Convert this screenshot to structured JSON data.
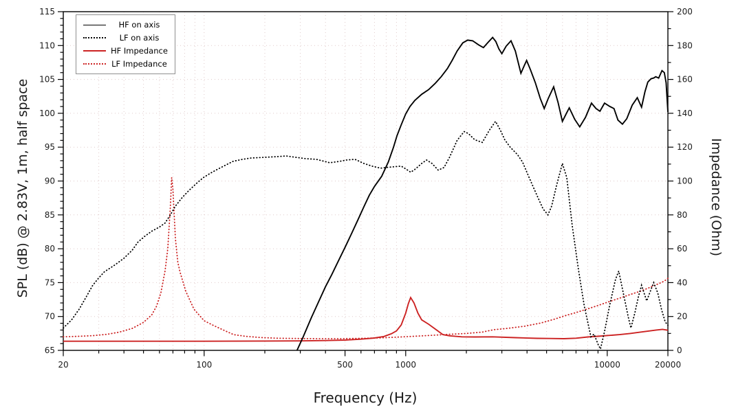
{
  "chart_data": {
    "type": "line",
    "title": "",
    "xlabel": "Frequency (Hz)",
    "ylabel_left": "SPL (dB) @ 2.83V, 1m, half space",
    "ylabel_right": "Impedance (Ohm)",
    "x_scale": "log",
    "xlim": [
      20,
      20000
    ],
    "ylim_left": [
      65,
      115
    ],
    "ylim_right": [
      0,
      200
    ],
    "x_major_ticks": [
      {
        "value": 20,
        "label": "20"
      },
      {
        "value": 100,
        "label": "100"
      },
      {
        "value": 500,
        "label": "500"
      },
      {
        "value": 1000,
        "label": "1000"
      },
      {
        "value": 10000,
        "label": "10000"
      },
      {
        "value": 20000,
        "label": "20000"
      }
    ],
    "x_minor_ticks": [
      30,
      40,
      50,
      60,
      70,
      80,
      90,
      200,
      300,
      400,
      600,
      700,
      800,
      900,
      2000,
      3000,
      4000,
      5000,
      6000,
      7000,
      8000,
      9000
    ],
    "y_left_major_step": 5,
    "y_left_minor_step": 1,
    "y_right_major_step": 20,
    "y_right_minor_step": 10,
    "grid": {
      "show": true,
      "style": "dotted",
      "color": "#dfc9c9"
    },
    "legend": {
      "position": "top-left",
      "border_color": "#8f8f8f"
    },
    "colors": {
      "spl": "#000000",
      "impedance": "#cc2222"
    },
    "series": [
      {
        "name": "HF on axis",
        "axis": "left",
        "unit": "dB",
        "color": "#000000",
        "style": "solid",
        "points": [
          [
            289,
            65
          ],
          [
            310,
            67
          ],
          [
            340,
            69.8
          ],
          [
            370,
            72.2
          ],
          [
            400,
            74.4
          ],
          [
            430,
            76.2
          ],
          [
            465,
            78.3
          ],
          [
            500,
            80.2
          ],
          [
            540,
            82.3
          ],
          [
            580,
            84.3
          ],
          [
            620,
            86.2
          ],
          [
            660,
            87.9
          ],
          [
            700,
            89.2
          ],
          [
            760,
            90.7
          ],
          [
            820,
            92.8
          ],
          [
            870,
            95.0
          ],
          [
            906,
            96.7
          ],
          [
            950,
            98.3
          ],
          [
            1000,
            99.9
          ],
          [
            1050,
            101.0
          ],
          [
            1110,
            101.9
          ],
          [
            1200,
            102.8
          ],
          [
            1300,
            103.5
          ],
          [
            1400,
            104.4
          ],
          [
            1500,
            105.4
          ],
          [
            1610,
            106.6
          ],
          [
            1700,
            107.8
          ],
          [
            1800,
            109.2
          ],
          [
            1920,
            110.4
          ],
          [
            2030,
            110.8
          ],
          [
            2150,
            110.7
          ],
          [
            2300,
            110.1
          ],
          [
            2430,
            109.7
          ],
          [
            2550,
            110.4
          ],
          [
            2700,
            111.2
          ],
          [
            2800,
            110.6
          ],
          [
            2900,
            109.5
          ],
          [
            3000,
            108.8
          ],
          [
            3150,
            109.9
          ],
          [
            3330,
            110.7
          ],
          [
            3500,
            109.2
          ],
          [
            3650,
            107.0
          ],
          [
            3730,
            105.9
          ],
          [
            3870,
            107.0
          ],
          [
            3980,
            107.8
          ],
          [
            4150,
            106.5
          ],
          [
            4400,
            104.5
          ],
          [
            4650,
            102.2
          ],
          [
            4870,
            100.7
          ],
          [
            5100,
            102.2
          ],
          [
            5420,
            103.9
          ],
          [
            5700,
            101.6
          ],
          [
            5990,
            98.8
          ],
          [
            6250,
            99.9
          ],
          [
            6480,
            100.8
          ],
          [
            6900,
            99.1
          ],
          [
            7300,
            98.0
          ],
          [
            7800,
            99.4
          ],
          [
            8350,
            101.5
          ],
          [
            8800,
            100.7
          ],
          [
            9200,
            100.3
          ],
          [
            9700,
            101.5
          ],
          [
            10300,
            101.0
          ],
          [
            10800,
            100.7
          ],
          [
            11300,
            99.0
          ],
          [
            11900,
            98.4
          ],
          [
            12500,
            99.2
          ],
          [
            13300,
            101.2
          ],
          [
            14100,
            102.3
          ],
          [
            14800,
            100.9
          ],
          [
            15400,
            103.2
          ],
          [
            15900,
            104.6
          ],
          [
            16500,
            105.1
          ],
          [
            17000,
            105.2
          ],
          [
            17400,
            105.4
          ],
          [
            18000,
            105.2
          ],
          [
            18700,
            106.3
          ],
          [
            19200,
            106.0
          ],
          [
            19600,
            104.5
          ],
          [
            20000,
            100.2
          ]
        ]
      },
      {
        "name": "LF on axis",
        "axis": "left",
        "unit": "dB",
        "color": "#000000",
        "style": "dotted",
        "points": [
          [
            20,
            68.3
          ],
          [
            22,
            69.5
          ],
          [
            24,
            71.1
          ],
          [
            26,
            72.9
          ],
          [
            28,
            74.6
          ],
          [
            30,
            75.7
          ],
          [
            32,
            76.6
          ],
          [
            36,
            77.6
          ],
          [
            40,
            78.6
          ],
          [
            44,
            79.8
          ],
          [
            47,
            81.0
          ],
          [
            51,
            81.9
          ],
          [
            55,
            82.6
          ],
          [
            60,
            83.2
          ],
          [
            64,
            83.8
          ],
          [
            68,
            85.0
          ],
          [
            72,
            86.3
          ],
          [
            78,
            87.6
          ],
          [
            84,
            88.6
          ],
          [
            92,
            89.7
          ],
          [
            99,
            90.5
          ],
          [
            108,
            91.2
          ],
          [
            116,
            91.7
          ],
          [
            127,
            92.3
          ],
          [
            139,
            92.9
          ],
          [
            155,
            93.2
          ],
          [
            171,
            93.4
          ],
          [
            200,
            93.5
          ],
          [
            230,
            93.6
          ],
          [
            255,
            93.7
          ],
          [
            285,
            93.5
          ],
          [
            320,
            93.3
          ],
          [
            360,
            93.2
          ],
          [
            420,
            92.7
          ],
          [
            470,
            92.9
          ],
          [
            510,
            93.1
          ],
          [
            560,
            93.2
          ],
          [
            620,
            92.6
          ],
          [
            680,
            92.2
          ],
          [
            750,
            91.9
          ],
          [
            800,
            92.0
          ],
          [
            870,
            92.1
          ],
          [
            950,
            92.2
          ],
          [
            1000,
            91.8
          ],
          [
            1060,
            91.3
          ],
          [
            1120,
            91.8
          ],
          [
            1200,
            92.6
          ],
          [
            1270,
            93.1
          ],
          [
            1350,
            92.6
          ],
          [
            1450,
            91.6
          ],
          [
            1550,
            92.0
          ],
          [
            1650,
            93.5
          ],
          [
            1800,
            96.0
          ],
          [
            1950,
            97.3
          ],
          [
            2050,
            97.0
          ],
          [
            2200,
            96.1
          ],
          [
            2400,
            95.7
          ],
          [
            2600,
            97.5
          ],
          [
            2790,
            98.8
          ],
          [
            2950,
            97.5
          ],
          [
            3100,
            96.1
          ],
          [
            3300,
            95.0
          ],
          [
            3585,
            93.9
          ],
          [
            3800,
            92.8
          ],
          [
            4100,
            90.5
          ],
          [
            4460,
            88.0
          ],
          [
            4800,
            85.9
          ],
          [
            5080,
            85.0
          ],
          [
            5300,
            86.3
          ],
          [
            5600,
            89.3
          ],
          [
            5990,
            92.6
          ],
          [
            6300,
            90.5
          ],
          [
            6700,
            83.5
          ],
          [
            7200,
            76.9
          ],
          [
            7700,
            71.5
          ],
          [
            8300,
            67.0
          ],
          [
            8600,
            67.4
          ],
          [
            9000,
            65.9
          ],
          [
            9260,
            65.2
          ],
          [
            9700,
            67.8
          ],
          [
            10300,
            71.8
          ],
          [
            11000,
            75.5
          ],
          [
            11400,
            76.7
          ],
          [
            12100,
            73.0
          ],
          [
            12700,
            70.0
          ],
          [
            13100,
            68.3
          ],
          [
            13700,
            70.5
          ],
          [
            14300,
            73.0
          ],
          [
            14800,
            74.6
          ],
          [
            15300,
            73.3
          ],
          [
            15700,
            72.3
          ],
          [
            16300,
            73.6
          ],
          [
            17000,
            75.0
          ],
          [
            17800,
            73.5
          ],
          [
            18600,
            71.0
          ],
          [
            19400,
            69.2
          ],
          [
            20000,
            68.7
          ]
        ]
      },
      {
        "name": "HF Impedance",
        "axis": "right",
        "unit": "Ohm",
        "color": "#cc2222",
        "style": "solid",
        "points": [
          [
            20,
            5.4
          ],
          [
            50,
            5.4
          ],
          [
            100,
            5.4
          ],
          [
            200,
            5.5
          ],
          [
            300,
            5.6
          ],
          [
            400,
            5.8
          ],
          [
            500,
            6.1
          ],
          [
            600,
            6.6
          ],
          [
            700,
            7.3
          ],
          [
            780,
            8.2
          ],
          [
            850,
            9.8
          ],
          [
            900,
            11.5
          ],
          [
            950,
            15
          ],
          [
            1000,
            22
          ],
          [
            1030,
            27.5
          ],
          [
            1058,
            31.2
          ],
          [
            1100,
            28
          ],
          [
            1150,
            22
          ],
          [
            1200,
            18
          ],
          [
            1300,
            15.4
          ],
          [
            1450,
            11.3
          ],
          [
            1530,
            9.3
          ],
          [
            1650,
            8.6
          ],
          [
            1900,
            8.0
          ],
          [
            2200,
            7.9
          ],
          [
            2700,
            8.0
          ],
          [
            3500,
            7.5
          ],
          [
            4500,
            7.1
          ],
          [
            5200,
            7.0
          ],
          [
            6100,
            6.9
          ],
          [
            7000,
            7.2
          ],
          [
            8000,
            7.9
          ],
          [
            9000,
            8.3
          ],
          [
            10400,
            8.9
          ],
          [
            11500,
            9.3
          ],
          [
            13000,
            10.0
          ],
          [
            14500,
            10.7
          ],
          [
            16000,
            11.4
          ],
          [
            17500,
            12.0
          ],
          [
            18800,
            12.4
          ],
          [
            19500,
            12.1
          ],
          [
            20000,
            11.9
          ]
        ]
      },
      {
        "name": "LF Impedance",
        "axis": "right",
        "unit": "Ohm",
        "color": "#cc2222",
        "style": "dotted",
        "points": [
          [
            20,
            8.0
          ],
          [
            24,
            8.3
          ],
          [
            28,
            8.7
          ],
          [
            33,
            9.5
          ],
          [
            38,
            10.8
          ],
          [
            44,
            13.0
          ],
          [
            50,
            16.5
          ],
          [
            55,
            21
          ],
          [
            58,
            26
          ],
          [
            61,
            34
          ],
          [
            64,
            47
          ],
          [
            66,
            60
          ],
          [
            68,
            85
          ],
          [
            69,
            102
          ],
          [
            70,
            95
          ],
          [
            72,
            66
          ],
          [
            74,
            52
          ],
          [
            76,
            46
          ],
          [
            81,
            35
          ],
          [
            89,
            24.3
          ],
          [
            100,
            17.5
          ],
          [
            110,
            15.0
          ],
          [
            122,
            12.5
          ],
          [
            140,
            9.3
          ],
          [
            160,
            8.3
          ],
          [
            190,
            7.6
          ],
          [
            230,
            7.2
          ],
          [
            290,
            7.0
          ],
          [
            370,
            6.9
          ],
          [
            470,
            6.9
          ],
          [
            600,
            7.1
          ],
          [
            750,
            7.4
          ],
          [
            900,
            7.8
          ],
          [
            1100,
            8.3
          ],
          [
            1350,
            8.9
          ],
          [
            1650,
            9.5
          ],
          [
            2000,
            10.0
          ],
          [
            2400,
            10.8
          ],
          [
            2740,
            12.2
          ],
          [
            3200,
            13.0
          ],
          [
            3900,
            14.3
          ],
          [
            4700,
            16.2
          ],
          [
            5500,
            18.5
          ],
          [
            6100,
            20.3
          ],
          [
            7000,
            22.3
          ],
          [
            8000,
            24.5
          ],
          [
            9000,
            26.5
          ],
          [
            10000,
            28.4
          ],
          [
            11500,
            30.8
          ],
          [
            13000,
            33.0
          ],
          [
            14500,
            34.8
          ],
          [
            16000,
            36.8
          ],
          [
            17500,
            38.8
          ],
          [
            18700,
            40.2
          ],
          [
            19500,
            41.5
          ],
          [
            20000,
            42.5
          ]
        ]
      }
    ]
  }
}
